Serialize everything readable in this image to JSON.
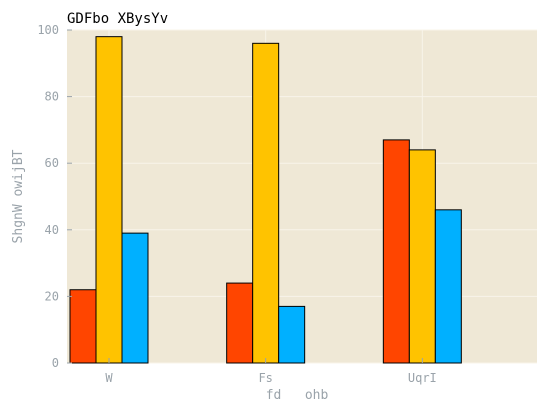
{
  "chart_data": {
    "type": "bar",
    "title": "GDFbo XBysYv",
    "xlabel": "fd   ohb",
    "ylabel": "ShgnW owijBT",
    "categories": [
      "W",
      "Fs",
      "UqrI"
    ],
    "series": [
      {
        "values": [
          22,
          24,
          67
        ],
        "color": "#ff4500"
      },
      {
        "values": [
          98,
          96,
          64
        ],
        "color": "#ffc300"
      },
      {
        "values": [
          39,
          17,
          46
        ],
        "color": "#00b0ff"
      }
    ],
    "ylim": [
      0,
      100
    ],
    "yticks": [
      "0",
      "20",
      "40",
      "60",
      "80",
      "100"
    ],
    "grid": true,
    "legend": "none",
    "colors": {
      "plot_background": "#efe8d6",
      "grid": "#f8f4ea",
      "tick_text": "#9aa3aa",
      "title_text": "#000000",
      "bar_edge": "#000000"
    }
  }
}
